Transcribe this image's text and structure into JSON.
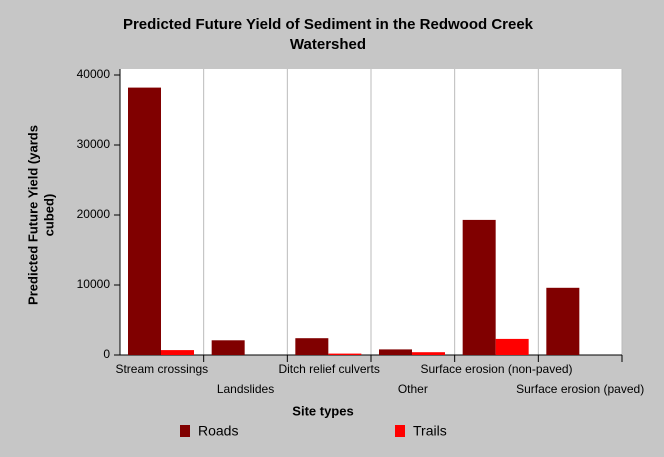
{
  "chart_data": {
    "type": "bar",
    "title": [
      "Predicted Future Yield of Sediment in the Redwood Creek",
      "Watershed"
    ],
    "x_label": "Site types",
    "y_label": [
      "Predicted Future Yield (yards",
      "cubed)"
    ],
    "categories": [
      "Stream crossings",
      "Landslides",
      "Ditch relief culverts",
      "Other",
      "Surface erosion (non-paved)",
      "Surface erosion (paved)"
    ],
    "series": [
      {
        "name": "Roads",
        "color": "#800000",
        "values": [
          38200,
          2100,
          2400,
          800,
          19300,
          9600
        ]
      },
      {
        "name": "Trails",
        "color": "#ff0000",
        "values": [
          700,
          0,
          200,
          400,
          2300,
          0
        ]
      }
    ],
    "ylim": [
      0,
      40000
    ],
    "yticks": [
      0,
      10000,
      20000,
      30000,
      40000
    ],
    "grid": true
  }
}
